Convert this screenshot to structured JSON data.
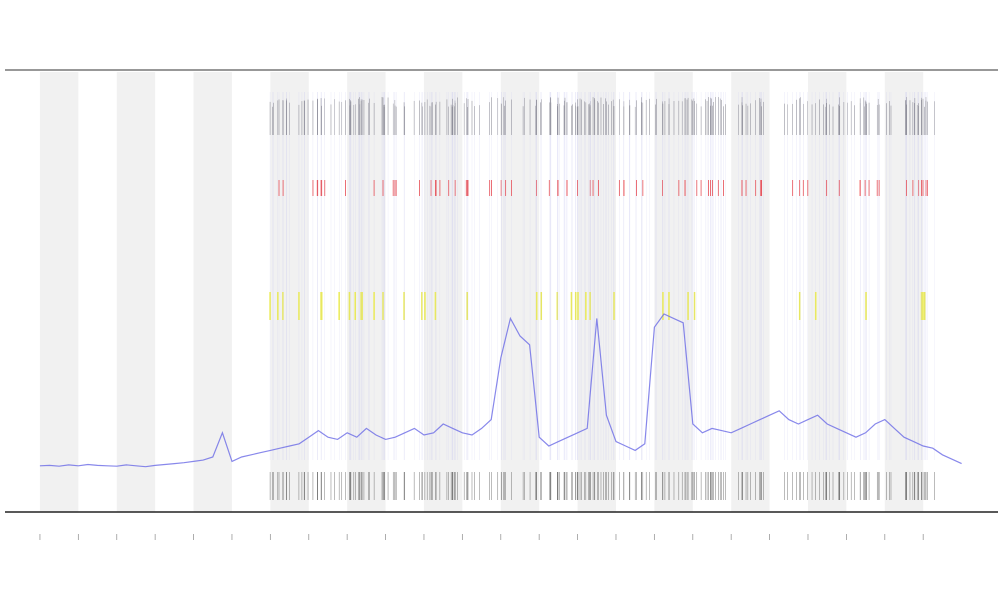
{
  "chart_data": {
    "type": "line",
    "x": [
      0,
      0.25,
      0.5,
      0.75,
      1,
      1.25,
      1.5,
      1.75,
      2,
      2.25,
      2.5,
      2.75,
      3,
      3.25,
      3.5,
      3.75,
      4,
      4.25,
      4.5,
      4.75,
      5,
      5.25,
      5.5,
      5.75,
      6,
      6.25,
      6.5,
      6.75,
      7,
      7.25,
      7.5,
      7.75,
      8,
      8.25,
      8.5,
      8.75,
      9,
      9.25,
      9.5,
      9.75,
      10,
      10.25,
      10.5,
      10.75,
      11,
      11.25,
      11.5,
      11.75,
      12,
      12.25,
      12.5,
      12.75,
      13,
      13.25,
      13.5,
      13.75,
      14,
      14.25,
      14.5,
      14.75,
      15,
      15.25,
      15.5,
      15.75,
      16,
      16.25,
      16.5,
      16.75,
      17,
      17.25,
      17.5,
      17.75,
      18,
      18.25,
      18.5,
      18.75,
      19,
      19.25,
      19.5,
      19.75,
      20,
      20.25,
      20.5,
      20.75,
      21,
      21.25,
      21.5,
      21.75,
      22,
      22.25,
      22.5,
      22.75,
      23,
      23.25,
      23.5,
      23.75,
      24
    ],
    "series": [
      {
        "color": "#6a6ae6",
        "values": [
          10.5,
          10.6,
          10.4,
          10.7,
          10.5,
          10.8,
          10.6,
          10.5,
          10.4,
          10.7,
          10.5,
          10.3,
          10.6,
          10.8,
          11.0,
          11.2,
          11.5,
          11.8,
          12.5,
          18,
          11.5,
          12.5,
          13,
          13.5,
          14,
          14.5,
          15,
          15.5,
          17,
          18.5,
          17,
          16.5,
          18,
          17,
          19,
          17.5,
          16.5,
          17,
          18,
          19,
          17.5,
          18,
          20,
          19,
          18,
          17.5,
          19,
          21,
          35,
          44,
          40,
          38,
          17,
          15,
          16,
          17,
          18,
          19,
          44,
          22,
          16,
          15,
          14,
          15.5,
          42,
          45,
          44,
          43,
          20,
          18,
          19,
          18.5,
          18,
          19,
          20,
          21,
          22,
          23,
          21,
          20,
          21,
          22,
          20,
          19,
          18,
          17,
          18,
          20,
          21,
          19,
          17,
          16,
          15,
          14.5,
          13,
          12,
          11
        ]
      }
    ],
    "xlim": [
      -0.91,
      25
    ],
    "ylim": [
      0,
      100
    ],
    "xticks": [
      0,
      1,
      2,
      3,
      4,
      5,
      6,
      7,
      8,
      9,
      10,
      11,
      12,
      13,
      14,
      15,
      16,
      17,
      18,
      19,
      20,
      21,
      22,
      23
    ],
    "bands": true
  }
}
